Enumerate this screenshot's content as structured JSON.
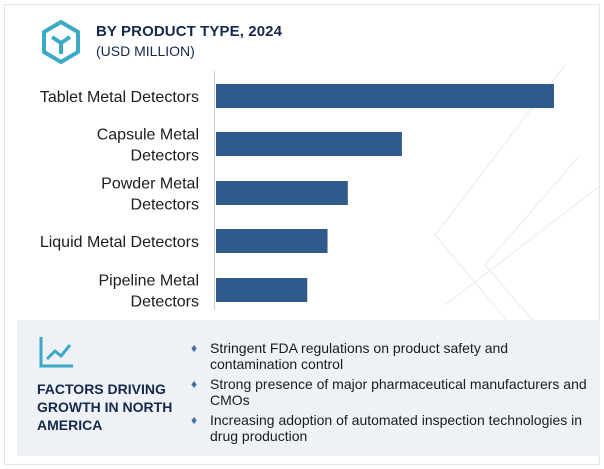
{
  "header": {
    "title": "BY PRODUCT TYPE, 2024",
    "subtitle": "(USD MILLION)"
  },
  "chart_data": {
    "type": "bar",
    "orientation": "horizontal",
    "categories": [
      [
        "Tablet Metal Detectors"
      ],
      [
        "Capsule Metal",
        "Detectors"
      ],
      [
        "Powder Metal",
        "Detectors"
      ],
      [
        "Liquid Metal Detectors"
      ],
      [
        "Pipeline Metal",
        "Detectors"
      ]
    ],
    "values": [
      100,
      55,
      39,
      33,
      27
    ],
    "bar_color": "#2f5a8c",
    "xlim": [
      0,
      100
    ],
    "grid": false
  },
  "factors": {
    "title": "FACTORS DRIVING GROWTH IN NORTH AMERICA",
    "items": [
      "Stringent FDA regulations on product safety and contamination control",
      "Strong presence of major pharmaceutical manufacturers and CMOs",
      "Increasing adoption of automated inspection technologies in drug production"
    ]
  },
  "colors": {
    "accent": "#2f5a8c",
    "title": "#15294a",
    "icon": "#3ba9c8",
    "panel_bg": "#eef1f5"
  },
  "icons": {
    "header": "hexagon-cube-icon",
    "factors": "trend-line-icon",
    "bullet": "diamond-bullet-icon"
  }
}
